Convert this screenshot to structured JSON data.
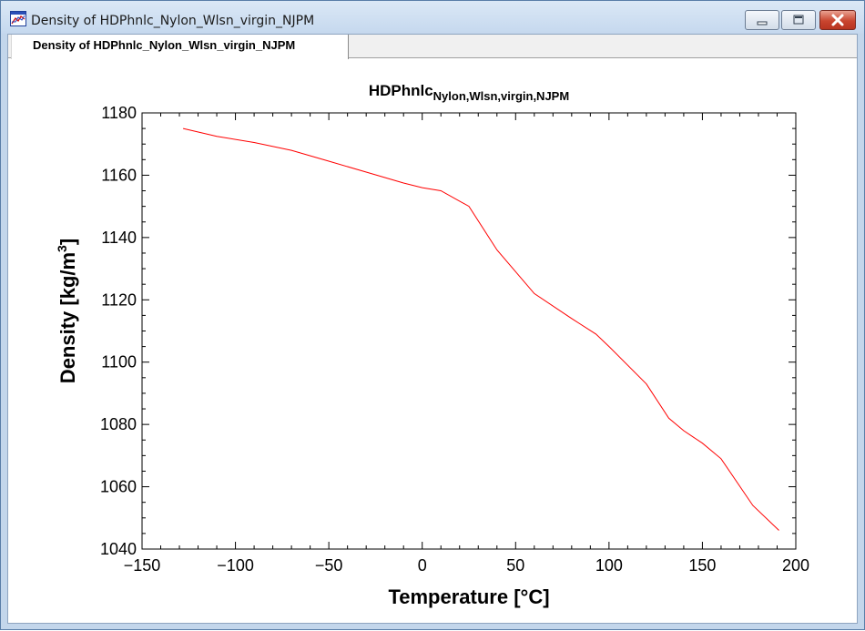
{
  "window": {
    "title": "Density of HDPhnlc_Nylon_Wlsn_virgin_NJPM",
    "app_icon": "chart-app-icon",
    "controls": [
      "minimize-icon",
      "maximize-icon",
      "close-icon"
    ]
  },
  "tabs": [
    {
      "label": "Density of HDPhnlc_Nylon_Wlsn_virgin_NJPM",
      "active": true
    }
  ],
  "chart_data": {
    "type": "line",
    "title": "HDPhnlc",
    "title_subscript": "Nylon,Wlsn,virgin,NJPM",
    "xlabel": "Temperature [°C]",
    "ylabel": "Density [kg/m",
    "ylabel_superscript": "3",
    "ylabel_suffix": "]",
    "xlim": [
      -150,
      200
    ],
    "ylim": [
      1040,
      1180
    ],
    "xticks": [
      -150,
      -100,
      -50,
      0,
      50,
      100,
      150,
      200
    ],
    "yticks": [
      1040,
      1060,
      1080,
      1100,
      1120,
      1140,
      1160,
      1180
    ],
    "grid": false,
    "line_color": "#ff0000",
    "series": [
      {
        "x": [
          -128,
          -110,
          -90,
          -70,
          -50,
          -30,
          -10,
          0,
          10,
          25,
          40,
          60,
          80,
          93,
          100,
          120,
          132,
          140,
          150,
          160,
          177,
          191
        ],
        "y": [
          1175,
          1172.5,
          1170.5,
          1168,
          1164.5,
          1161,
          1157.5,
          1156,
          1155,
          1150,
          1136,
          1122,
          1114,
          1109,
          1105,
          1093,
          1082,
          1078,
          1074,
          1069,
          1054,
          1046
        ]
      }
    ]
  }
}
